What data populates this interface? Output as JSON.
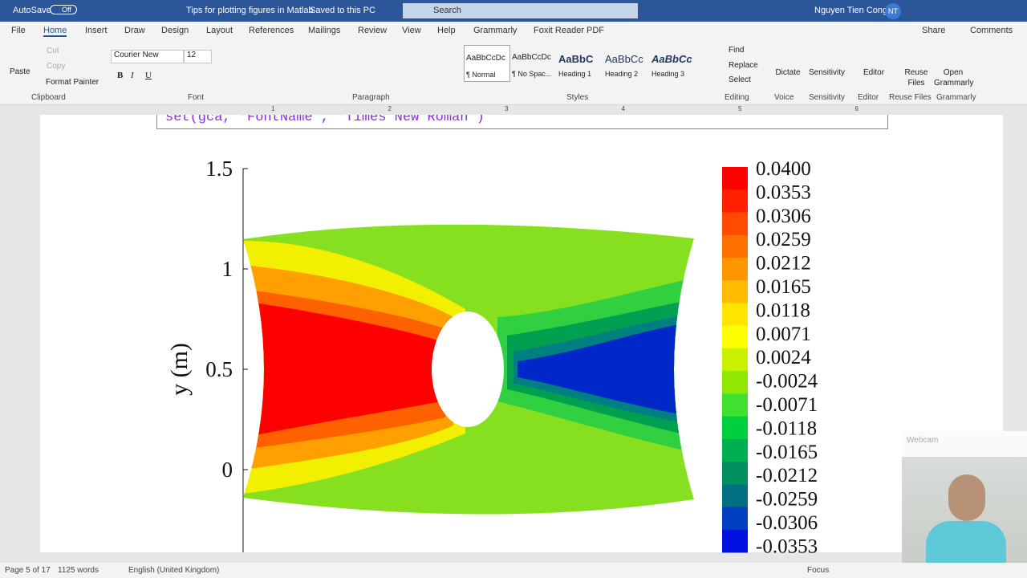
{
  "titlebar": {
    "autosave": "AutoSave",
    "toggle": "Off",
    "document": "Tips for plotting figures in Matlab",
    "saved": "Saved to this PC",
    "search": "Search",
    "user": "Nguyen Tien Cong",
    "initials": "NT"
  },
  "tabs": [
    "File",
    "Home",
    "Insert",
    "Draw",
    "Design",
    "Layout",
    "References",
    "Mailings",
    "Review",
    "View",
    "Help",
    "Grammarly",
    "Foxit Reader PDF"
  ],
  "share": "Share",
  "comments": "Comments",
  "ribbon": {
    "clipboard": {
      "label": "Clipboard",
      "paste": "Paste",
      "cut": "Cut",
      "copy": "Copy",
      "format_painter": "Format Painter"
    },
    "font": {
      "label": "Font",
      "name": "Courier New",
      "size": "12",
      "buttons": [
        "B",
        "I",
        "U"
      ]
    },
    "paragraph": {
      "label": "Paragraph"
    },
    "styles": {
      "label": "Styles",
      "items": [
        {
          "preview": "AaBbCcDc",
          "name": "¶ Normal"
        },
        {
          "preview": "AaBbCcDc",
          "name": "¶ No Spac..."
        },
        {
          "preview": "AaBbC",
          "name": "Heading 1"
        },
        {
          "preview": "AaBbCc",
          "name": "Heading 2"
        },
        {
          "preview": "AaBbCc",
          "name": "Heading 3"
        }
      ]
    },
    "editing": {
      "label": "Editing",
      "find": "Find",
      "replace": "Replace",
      "select": "Select"
    },
    "voice": {
      "label": "Voice",
      "button": "Dictate"
    },
    "sensitivity": {
      "label": "Sensitivity",
      "button": "Sensitivity"
    },
    "editor": {
      "label": "Editor",
      "button": "Editor"
    },
    "reuse": {
      "label": "Reuse Files",
      "button": "Reuse Files"
    },
    "grammarly": {
      "label": "Grammarly",
      "button": "Open Grammarly"
    }
  },
  "ruler": [
    "1",
    "2",
    "3",
    "4",
    "5",
    "6"
  ],
  "document": {
    "code": "set(gca,  'FontName',  'Times New Roman')",
    "figure": {
      "ylabel": "y (m)",
      "yticks": [
        "1.5",
        "1",
        "0.5",
        "0"
      ],
      "colorbar": [
        "0.0400",
        "0.0353",
        "0.0306",
        "0.0259",
        "0.0212",
        "0.0165",
        "0.0118",
        "0.0071",
        "0.0024",
        "-0.0024",
        "-0.0071",
        "-0.0118",
        "-0.0165",
        "-0.0212",
        "-0.0259",
        "-0.0306",
        "-0.0353"
      ]
    }
  },
  "statusbar": {
    "page": "Page 5 of 17",
    "words": "1125 words",
    "language": "English (United Kingdom)",
    "focus": "Focus"
  },
  "webcam": "Webcam"
}
